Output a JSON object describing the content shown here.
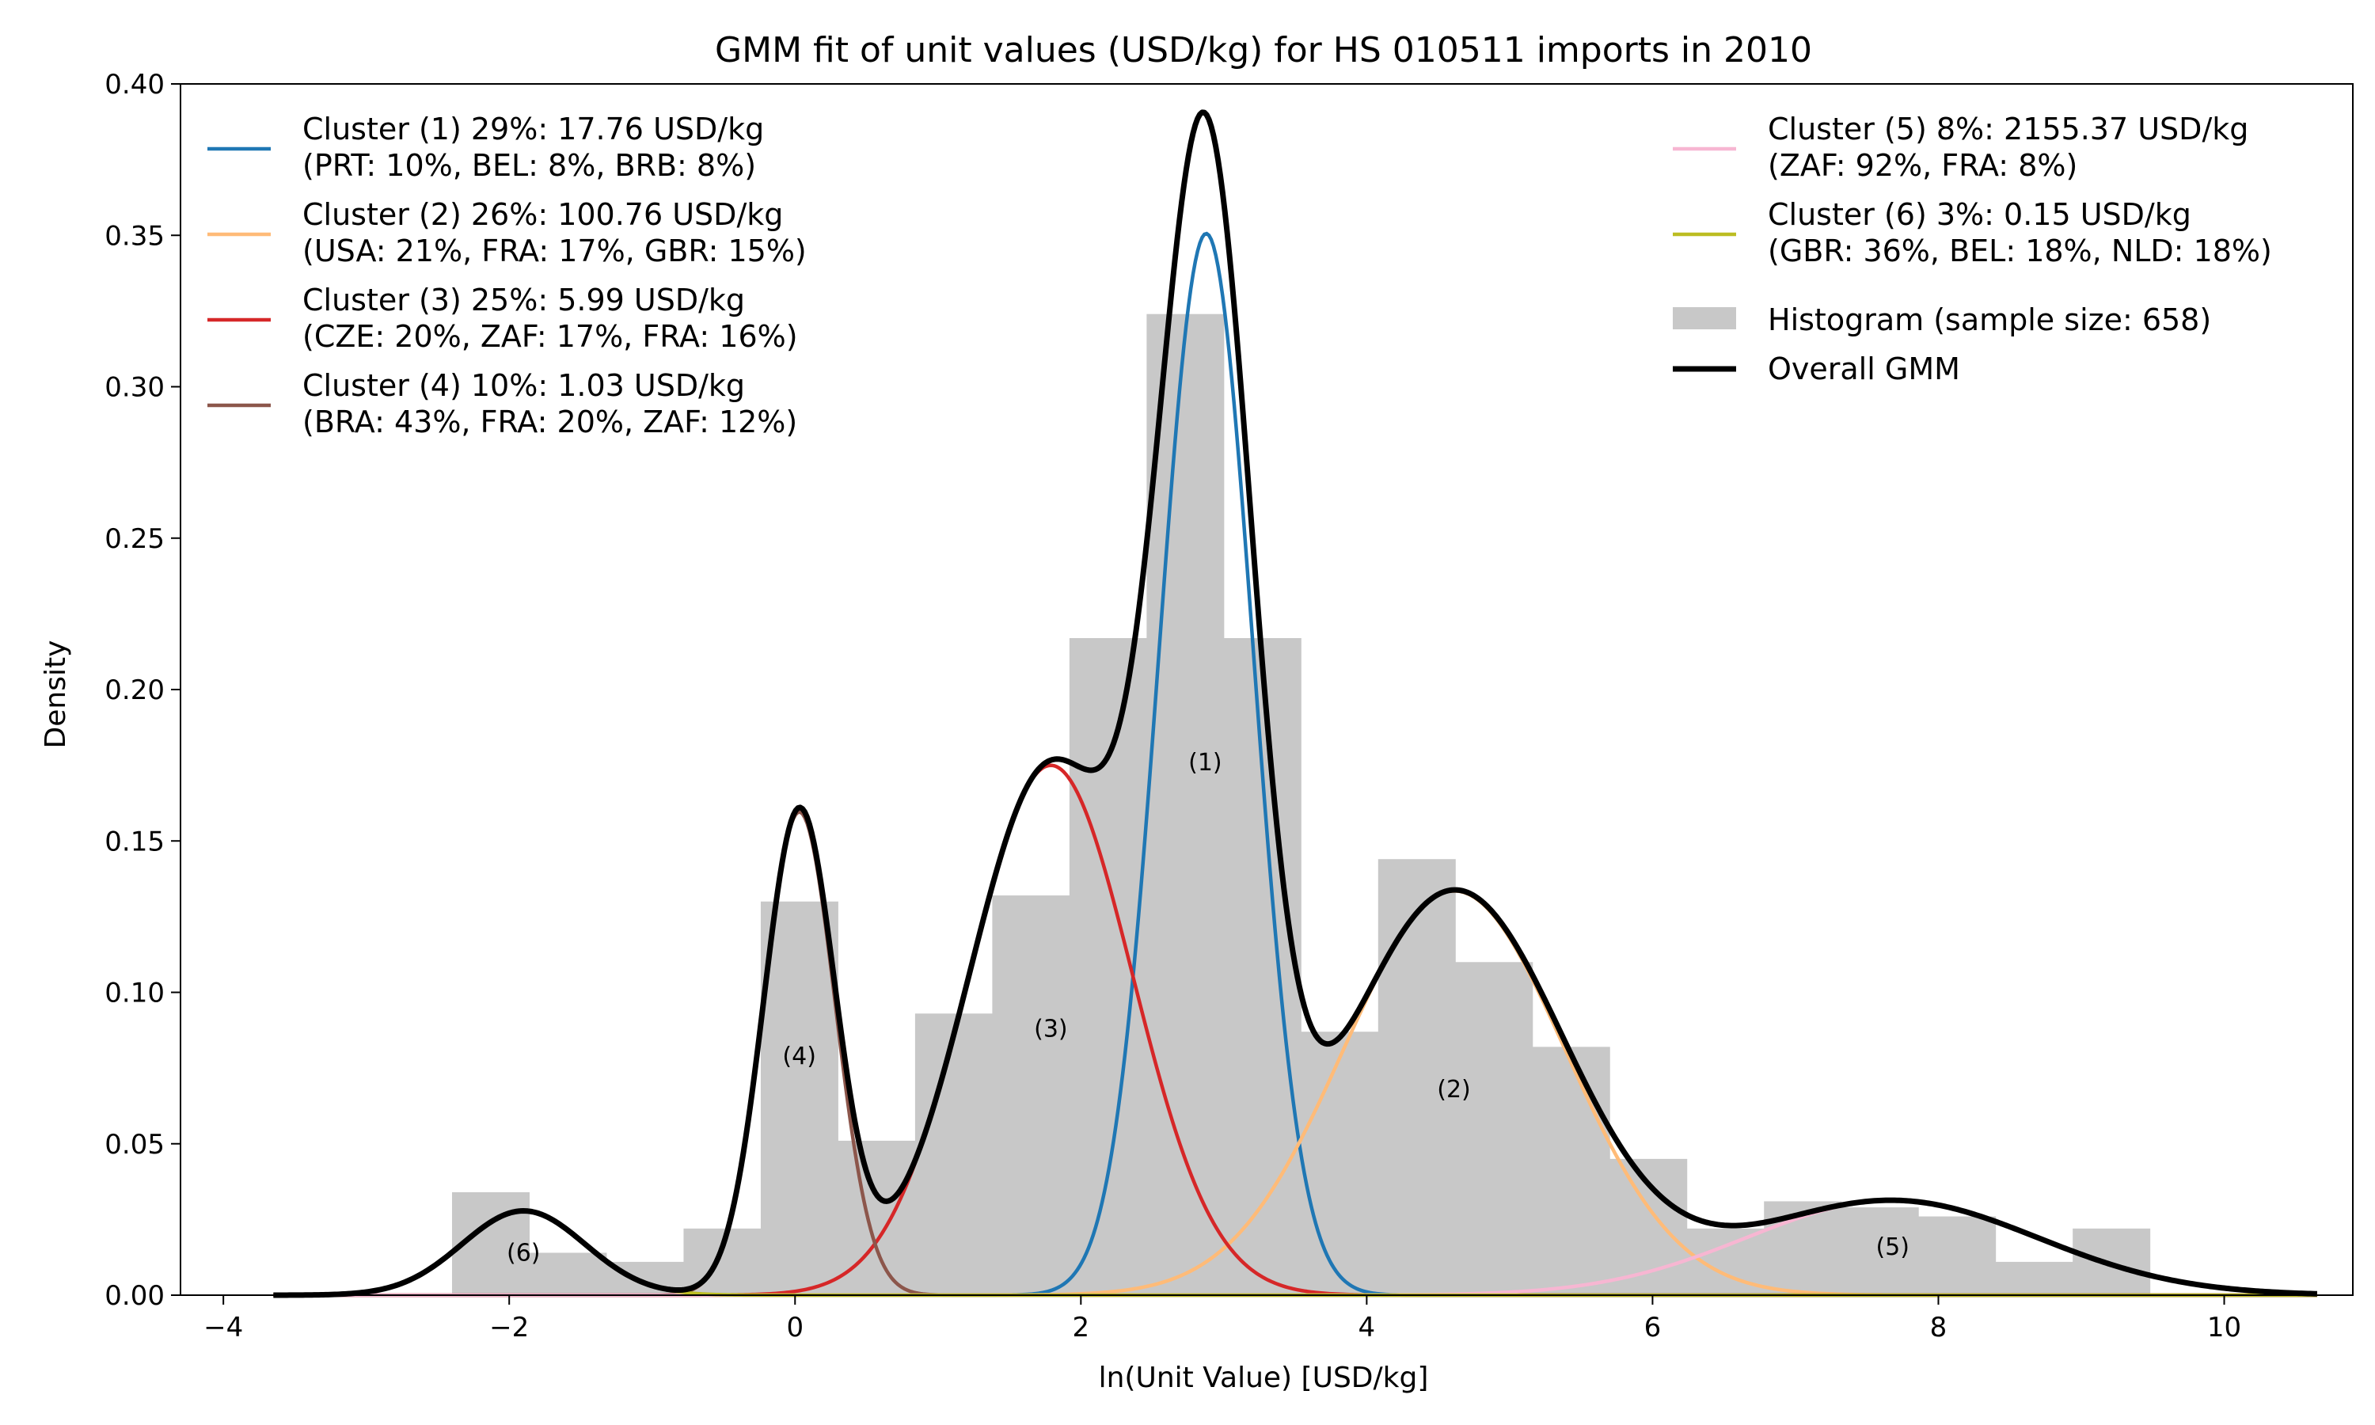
{
  "chart_data": {
    "type": "area",
    "title": "GMM fit of unit values (USD/kg) for HS 010511 imports in 2010",
    "xlabel": "ln(Unit Value) [USD/kg]",
    "ylabel": "Density",
    "xlim": [
      -4.3,
      10.9
    ],
    "ylim": [
      0,
      0.4
    ],
    "xticks": [
      -4,
      -2,
      0,
      2,
      4,
      6,
      8,
      10
    ],
    "yticks": [
      0.0,
      0.05,
      0.1,
      0.15,
      0.2,
      0.25,
      0.3,
      0.35,
      0.4
    ],
    "xtick_labels": [
      "−4",
      "−2",
      "0",
      "2",
      "4",
      "6",
      "8",
      "10"
    ],
    "ytick_labels": [
      "0.00",
      "0.05",
      "0.10",
      "0.15",
      "0.20",
      "0.25",
      "0.30",
      "0.35",
      "0.40"
    ],
    "grid": false,
    "histogram": {
      "name": "Histogram (sample size: 658)",
      "color": "#c8c8c8",
      "bin_width": 0.54,
      "bins": [
        {
          "x0": -2.4,
          "value": 0.034
        },
        {
          "x0": -1.86,
          "value": 0.014
        },
        {
          "x0": -1.32,
          "value": 0.011
        },
        {
          "x0": -0.78,
          "value": 0.022
        },
        {
          "x0": -0.24,
          "value": 0.13
        },
        {
          "x0": 0.3,
          "value": 0.051
        },
        {
          "x0": 0.84,
          "value": 0.093
        },
        {
          "x0": 1.38,
          "value": 0.132
        },
        {
          "x0": 1.92,
          "value": 0.217
        },
        {
          "x0": 2.46,
          "value": 0.324
        },
        {
          "x0": 3.0,
          "value": 0.217
        },
        {
          "x0": 3.54,
          "value": 0.087
        },
        {
          "x0": 4.08,
          "value": 0.144
        },
        {
          "x0": 4.62,
          "value": 0.11
        },
        {
          "x0": 5.16,
          "value": 0.082
        },
        {
          "x0": 5.7,
          "value": 0.045
        },
        {
          "x0": 6.24,
          "value": 0.022
        },
        {
          "x0": 6.78,
          "value": 0.031
        },
        {
          "x0": 7.32,
          "value": 0.029
        },
        {
          "x0": 7.86,
          "value": 0.026
        },
        {
          "x0": 8.4,
          "value": 0.011
        },
        {
          "x0": 8.94,
          "value": 0.022
        }
      ]
    },
    "series": [
      {
        "id": "c1",
        "name": "Cluster (1) 29%: 17.76 USD/kg",
        "sub": "(PRT: 10%, BEL: 8%, BRB: 8%)",
        "label": "(1)",
        "label_x": 2.87,
        "label_y": 0.176,
        "color": "#1f77b4",
        "mean": 2.877,
        "sd": 0.33,
        "weight": 0.29
      },
      {
        "id": "c2",
        "name": "Cluster (2) 26%: 100.76 USD/kg",
        "sub": "(USA: 21%, FRA: 17%, GBR: 15%)",
        "label": "(2)",
        "label_x": 4.61,
        "label_y": 0.068,
        "color": "#ffbb78",
        "mean": 4.613,
        "sd": 0.777,
        "weight": 0.26
      },
      {
        "id": "c3",
        "name": "Cluster (3) 25%: 5.99 USD/kg",
        "sub": "(CZE: 20%, ZAF: 17%, FRA: 16%)",
        "label": "(3)",
        "label_x": 1.79,
        "label_y": 0.088,
        "color": "#d62728",
        "mean": 1.79,
        "sd": 0.57,
        "weight": 0.25
      },
      {
        "id": "c4",
        "name": "Cluster (4) 10%: 1.03 USD/kg",
        "sub": "(BRA: 43%, FRA: 20%, ZAF: 12%)",
        "label": "(4)",
        "label_x": 0.03,
        "label_y": 0.079,
        "color": "#8c564b",
        "mean": 0.03,
        "sd": 0.25,
        "weight": 0.1
      },
      {
        "id": "c5",
        "name": "Cluster (5) 8%: 2155.37 USD/kg",
        "sub": "(ZAF: 92%, FRA: 8%)",
        "label": "(5)",
        "label_x": 7.68,
        "label_y": 0.016,
        "color": "#f7b6d2",
        "mean": 7.676,
        "sd": 1.02,
        "weight": 0.08
      },
      {
        "id": "c6",
        "name": "Cluster (6) 3%: 0.15 USD/kg",
        "sub": "(GBR: 36%, BEL: 18%, NLD: 18%)",
        "label": "(6)",
        "label_x": -1.9,
        "label_y": 0.014,
        "color": "#bcbd22",
        "mean": -1.9,
        "sd": 0.43,
        "weight": 0.03
      }
    ],
    "overall": {
      "name": "Overall GMM",
      "color": "#000000"
    },
    "curve_x_range": [
      -3.65,
      10.65
    ],
    "legend_left": [
      "c1",
      "c2",
      "c3",
      "c4"
    ],
    "legend_right": [
      "c5",
      "c6",
      "histogram",
      "overall"
    ]
  }
}
